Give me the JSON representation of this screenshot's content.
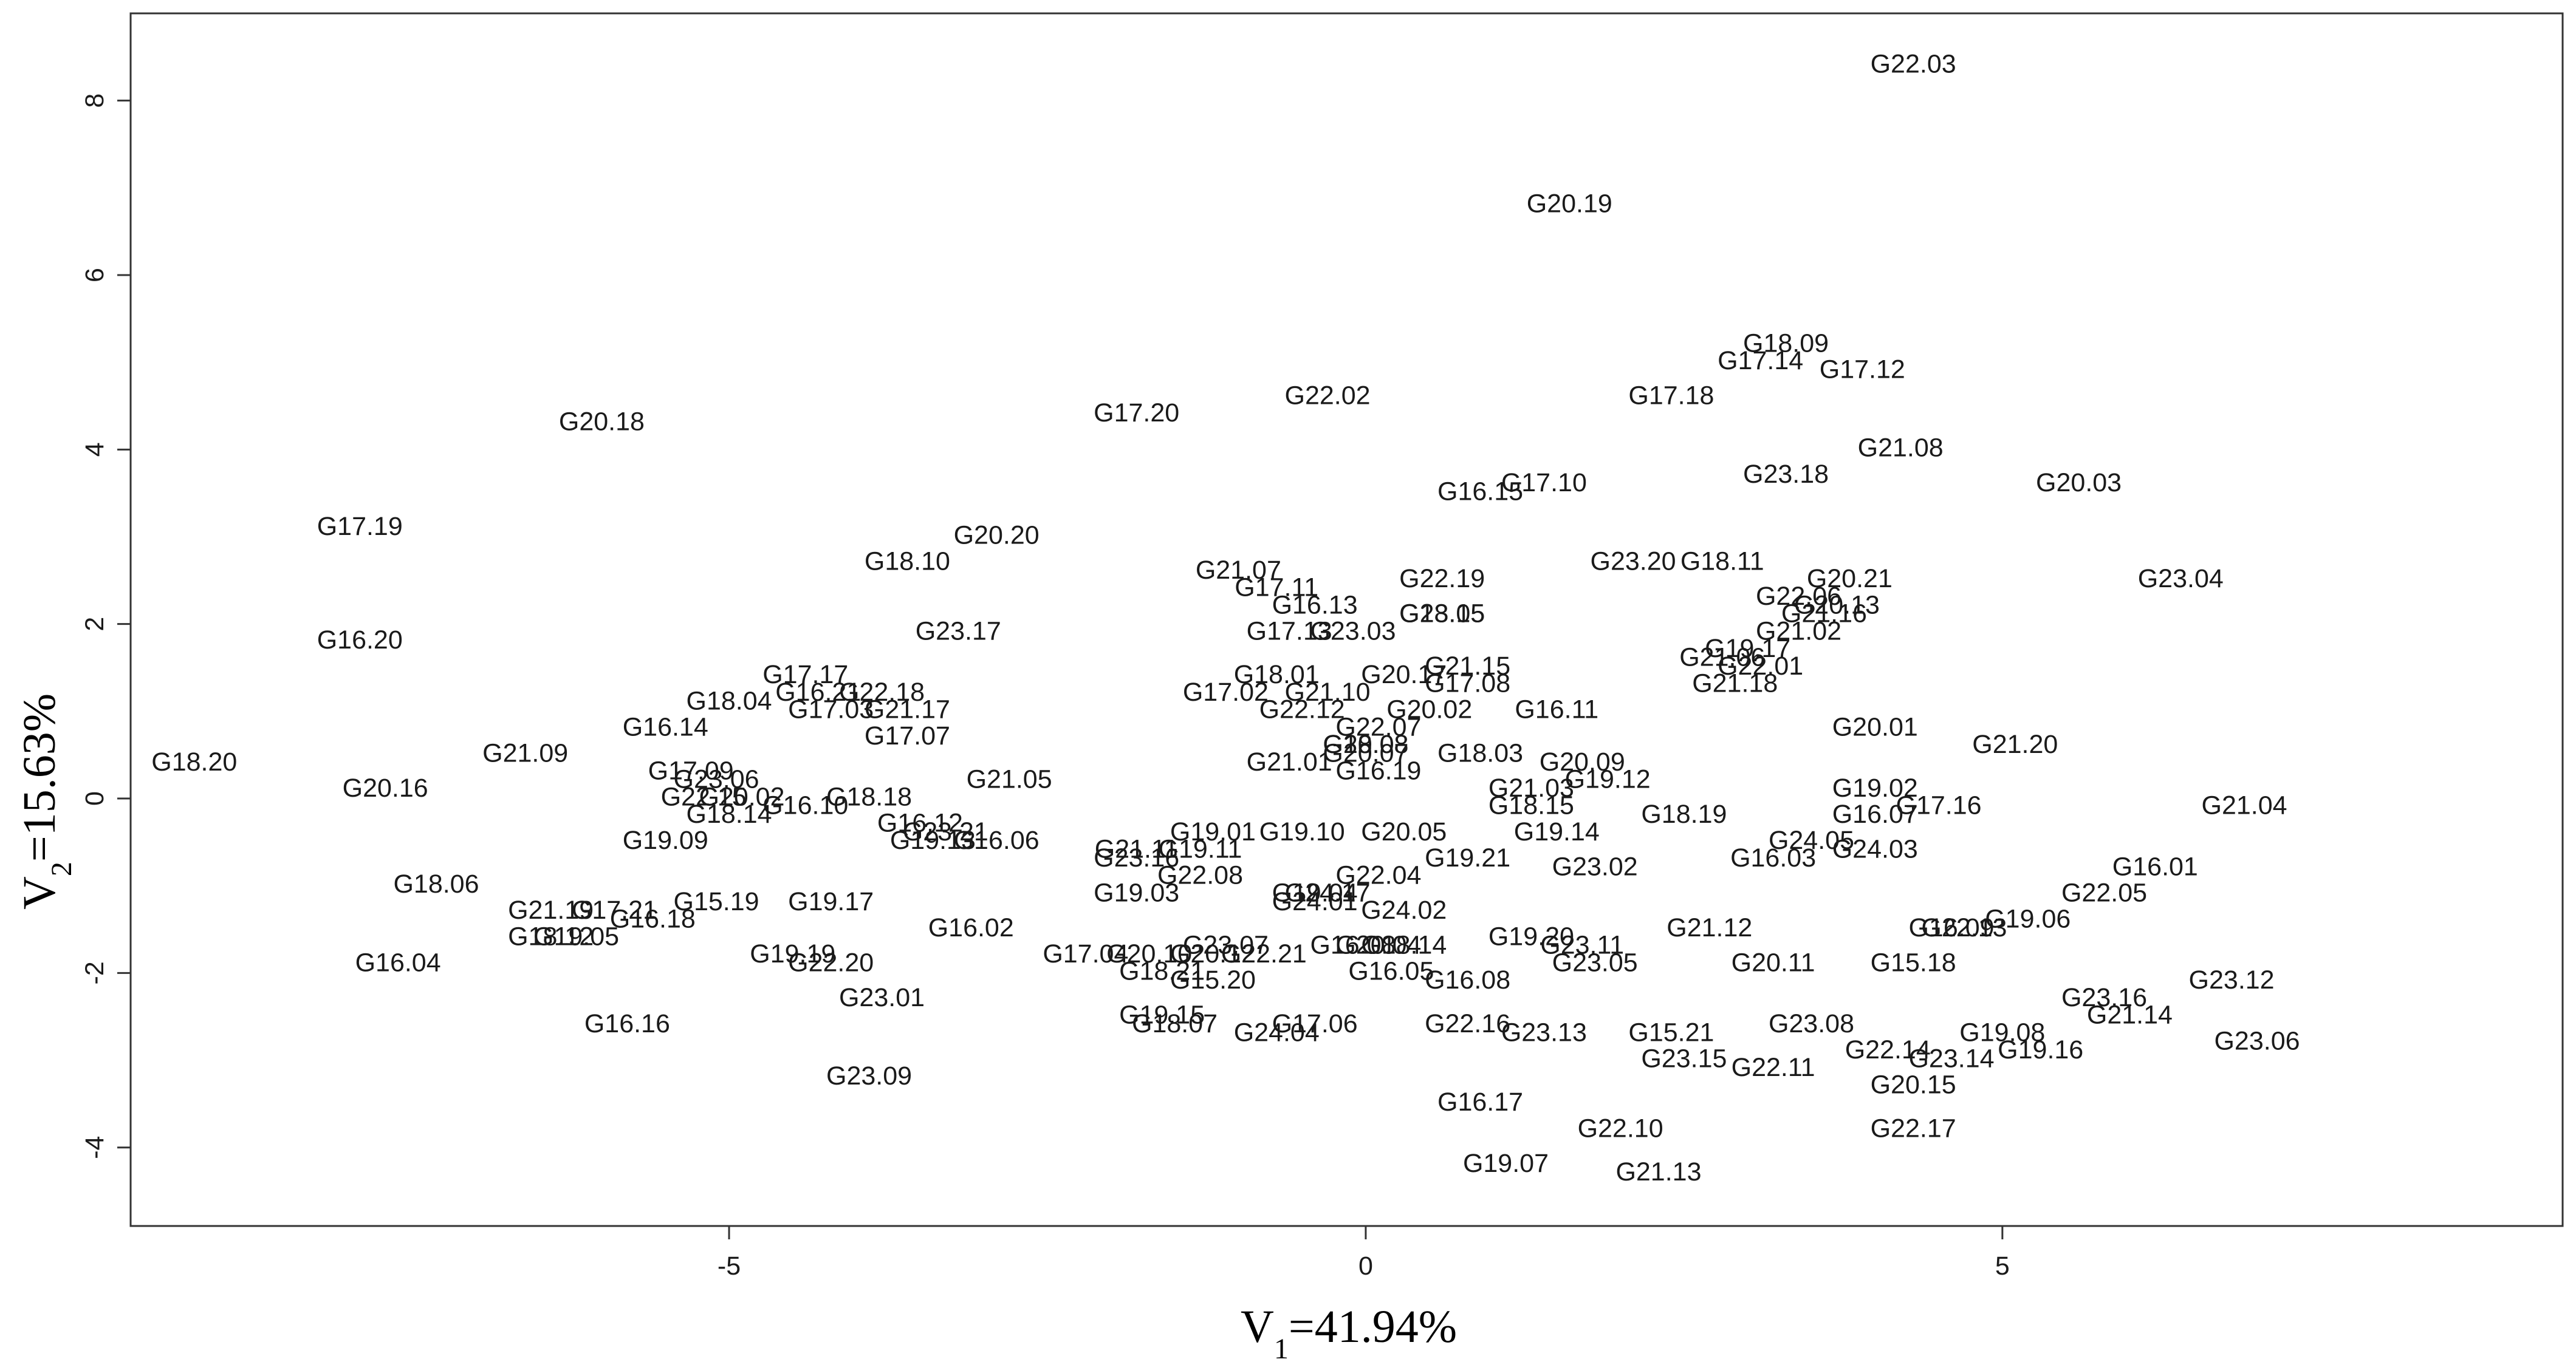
{
  "chart_data": {
    "type": "scatter",
    "xlabel": {
      "base": "V",
      "sub": "1",
      "rest": "=41.94%"
    },
    "ylabel": {
      "base": "V",
      "sub": "2",
      "rest": "=15.63%"
    },
    "xlim": [
      -9.7,
      9.4
    ],
    "ylim": [
      -4.9,
      9.0
    ],
    "xticks": [
      -5,
      0,
      5
    ],
    "yticks": [
      -4,
      -2,
      0,
      2,
      4,
      6,
      8
    ],
    "grid": false,
    "marker": "text-label",
    "points": [
      {
        "label": "G22.03",
        "x": 4.3,
        "y": 8.4
      },
      {
        "label": "G20.19",
        "x": 1.6,
        "y": 6.8
      },
      {
        "label": "G18.09",
        "x": 3.3,
        "y": 5.2
      },
      {
        "label": "G17.14",
        "x": 3.1,
        "y": 5.0
      },
      {
        "label": "G17.12",
        "x": 3.9,
        "y": 4.9
      },
      {
        "label": "G17.18",
        "x": 2.4,
        "y": 4.6
      },
      {
        "label": "G22.02",
        "x": -0.3,
        "y": 4.6
      },
      {
        "label": "G17.20",
        "x": -1.8,
        "y": 4.4
      },
      {
        "label": "G20.18",
        "x": -6.0,
        "y": 4.3
      },
      {
        "label": "G21.08",
        "x": 4.2,
        "y": 4.0
      },
      {
        "label": "G23.18",
        "x": 3.3,
        "y": 3.7
      },
      {
        "label": "G20.03",
        "x": 5.6,
        "y": 3.6
      },
      {
        "label": "G17.10",
        "x": 1.4,
        "y": 3.6
      },
      {
        "label": "G16.15",
        "x": 0.9,
        "y": 3.5
      },
      {
        "label": "G17.19",
        "x": -7.9,
        "y": 3.1
      },
      {
        "label": "G20.20",
        "x": -2.9,
        "y": 3.0
      },
      {
        "label": "G18.10",
        "x": -3.6,
        "y": 2.7
      },
      {
        "label": "G23.20",
        "x": 2.1,
        "y": 2.7
      },
      {
        "label": "G18.11",
        "x": 2.8,
        "y": 2.7
      },
      {
        "label": "G21.07",
        "x": -1.0,
        "y": 2.6
      },
      {
        "label": "G23.04",
        "x": 6.4,
        "y": 2.5
      },
      {
        "label": "G20.21",
        "x": 3.8,
        "y": 2.5
      },
      {
        "label": "G22.19",
        "x": 0.6,
        "y": 2.5
      },
      {
        "label": "G17.11",
        "x": -0.7,
        "y": 2.4
      },
      {
        "label": "G22.06",
        "x": 3.4,
        "y": 2.3
      },
      {
        "label": "G20.13",
        "x": 3.7,
        "y": 2.2
      },
      {
        "label": "G16.13",
        "x": -0.4,
        "y": 2.2
      },
      {
        "label": "G23.05",
        "x": 0.6,
        "y": 2.1
      },
      {
        "label": "G18.15",
        "x": 0.6,
        "y": 2.1
      },
      {
        "label": "G21.16",
        "x": 3.6,
        "y": 2.1
      },
      {
        "label": "G17.13",
        "x": -0.6,
        "y": 1.9
      },
      {
        "label": "G23.03",
        "x": -0.1,
        "y": 1.9
      },
      {
        "label": "G21.02",
        "x": 3.4,
        "y": 1.9
      },
      {
        "label": "G23.17",
        "x": -3.2,
        "y": 1.9
      },
      {
        "label": "G16.20",
        "x": -7.9,
        "y": 1.8
      },
      {
        "label": "G19.17",
        "x": 3.0,
        "y": 1.7
      },
      {
        "label": "G21.06",
        "x": 2.8,
        "y": 1.6
      },
      {
        "label": "G22.01",
        "x": 3.1,
        "y": 1.5
      },
      {
        "label": "G21.15",
        "x": 0.8,
        "y": 1.5
      },
      {
        "label": "G17.17",
        "x": -4.4,
        "y": 1.4
      },
      {
        "label": "G18.01",
        "x": -0.7,
        "y": 1.4
      },
      {
        "label": "G20.17",
        "x": 0.3,
        "y": 1.4
      },
      {
        "label": "G17.08",
        "x": 0.8,
        "y": 1.3
      },
      {
        "label": "G21.18",
        "x": 2.9,
        "y": 1.3
      },
      {
        "label": "G16.21",
        "x": -4.3,
        "y": 1.2
      },
      {
        "label": "G22.18",
        "x": -3.8,
        "y": 1.2
      },
      {
        "label": "G17.02",
        "x": -1.1,
        "y": 1.2
      },
      {
        "label": "G21.10",
        "x": -0.3,
        "y": 1.2
      },
      {
        "label": "G18.04",
        "x": -5.0,
        "y": 1.1
      },
      {
        "label": "G17.03",
        "x": -4.2,
        "y": 1.0
      },
      {
        "label": "G21.17",
        "x": -3.6,
        "y": 1.0
      },
      {
        "label": "G22.12",
        "x": -0.5,
        "y": 1.0
      },
      {
        "label": "G16.11",
        "x": 1.5,
        "y": 1.0
      },
      {
        "label": "G20.02",
        "x": 0.5,
        "y": 1.0
      },
      {
        "label": "G16.14",
        "x": -5.5,
        "y": 0.8
      },
      {
        "label": "G22.07",
        "x": 0.1,
        "y": 0.8
      },
      {
        "label": "G20.01",
        "x": 4.0,
        "y": 0.8
      },
      {
        "label": "G17.07",
        "x": -3.6,
        "y": 0.7
      },
      {
        "label": "G18.08",
        "x": 0.0,
        "y": 0.6
      },
      {
        "label": "G20.08",
        "x": 0.0,
        "y": 0.6
      },
      {
        "label": "G21.20",
        "x": 5.1,
        "y": 0.6
      },
      {
        "label": "G18.03",
        "x": 0.9,
        "y": 0.5
      },
      {
        "label": "G21.01",
        "x": -0.6,
        "y": 0.4
      },
      {
        "label": "G20.07",
        "x": 0.0,
        "y": 0.5
      },
      {
        "label": "G20.09",
        "x": 1.7,
        "y": 0.4
      },
      {
        "label": "G18.20",
        "x": -9.2,
        "y": 0.4
      },
      {
        "label": "G21.09",
        "x": -6.6,
        "y": 0.5
      },
      {
        "label": "G16.19",
        "x": 0.1,
        "y": 0.3
      },
      {
        "label": "G17.09",
        "x": -5.3,
        "y": 0.3
      },
      {
        "label": "G19.12",
        "x": 1.9,
        "y": 0.2
      },
      {
        "label": "G21.05",
        "x": -2.8,
        "y": 0.2
      },
      {
        "label": "G23.06",
        "x": -5.1,
        "y": 0.2
      },
      {
        "label": "G20.16",
        "x": -7.7,
        "y": 0.1
      },
      {
        "label": "G21.03",
        "x": 1.3,
        "y": 0.1
      },
      {
        "label": "G19.02",
        "x": 4.0,
        "y": 0.1
      },
      {
        "label": "G22.15",
        "x": -5.2,
        "y": 0.0
      },
      {
        "label": "G20.02",
        "x": -4.9,
        "y": 0.0
      },
      {
        "label": "G18.18",
        "x": -3.9,
        "y": 0.0
      },
      {
        "label": "G16.10",
        "x": -4.4,
        "y": -0.1
      },
      {
        "label": "G18.15",
        "x": 1.3,
        "y": -0.1
      },
      {
        "label": "G17.16",
        "x": 4.5,
        "y": -0.1
      },
      {
        "label": "G18.19",
        "x": 2.5,
        "y": -0.2
      },
      {
        "label": "G21.04",
        "x": 6.9,
        "y": -0.1
      },
      {
        "label": "G18.14",
        "x": -5.0,
        "y": -0.2
      },
      {
        "label": "G16.07",
        "x": 4.0,
        "y": -0.2
      },
      {
        "label": "G16.12",
        "x": -3.5,
        "y": -0.3
      },
      {
        "label": "G23.21",
        "x": -3.3,
        "y": -0.4
      },
      {
        "label": "G19.01",
        "x": -1.2,
        "y": -0.4
      },
      {
        "label": "G19.10",
        "x": -0.5,
        "y": -0.4
      },
      {
        "label": "G20.05",
        "x": 0.3,
        "y": -0.4
      },
      {
        "label": "G19.14",
        "x": 1.5,
        "y": -0.4
      },
      {
        "label": "G16.06",
        "x": -2.9,
        "y": -0.5
      },
      {
        "label": "G19.13",
        "x": -3.4,
        "y": -0.5
      },
      {
        "label": "G19.09",
        "x": -5.5,
        "y": -0.5
      },
      {
        "label": "G24.05",
        "x": 3.5,
        "y": -0.5
      },
      {
        "label": "G24.03",
        "x": 4.0,
        "y": -0.6
      },
      {
        "label": "G21.11",
        "x": -1.8,
        "y": -0.6
      },
      {
        "label": "G19.11",
        "x": -1.3,
        "y": -0.6
      },
      {
        "label": "G23.16",
        "x": -1.8,
        "y": -0.7
      },
      {
        "label": "G19.21",
        "x": 0.8,
        "y": -0.7
      },
      {
        "label": "G16.03",
        "x": 3.2,
        "y": -0.7
      },
      {
        "label": "G23.02",
        "x": 1.8,
        "y": -0.8
      },
      {
        "label": "G16.01",
        "x": 6.2,
        "y": -0.8
      },
      {
        "label": "G22.08",
        "x": -1.3,
        "y": -0.9
      },
      {
        "label": "G22.04",
        "x": 0.1,
        "y": -0.9
      },
      {
        "label": "G18.06",
        "x": -7.3,
        "y": -1.0
      },
      {
        "label": "G19.04",
        "x": -0.4,
        "y": -1.1
      },
      {
        "label": "G24.17",
        "x": -0.3,
        "y": -1.1
      },
      {
        "label": "G19.03",
        "x": -1.8,
        "y": -1.1
      },
      {
        "label": "G22.05",
        "x": 5.8,
        "y": -1.1
      },
      {
        "label": "G15.19",
        "x": -5.1,
        "y": -1.2
      },
      {
        "label": "G19.17",
        "x": -4.2,
        "y": -1.2
      },
      {
        "label": "G24.01",
        "x": -0.4,
        "y": -1.2
      },
      {
        "label": "G24.02",
        "x": 0.3,
        "y": -1.3
      },
      {
        "label": "G17.21",
        "x": -5.9,
        "y": -1.3
      },
      {
        "label": "G21.19",
        "x": -6.4,
        "y": -1.3
      },
      {
        "label": "G16.18",
        "x": -5.6,
        "y": -1.4
      },
      {
        "label": "G16.02",
        "x": -3.1,
        "y": -1.5
      },
      {
        "label": "G21.12",
        "x": 2.7,
        "y": -1.5
      },
      {
        "label": "G22.13",
        "x": 4.7,
        "y": -1.5
      },
      {
        "label": "G19.06",
        "x": 5.2,
        "y": -1.4
      },
      {
        "label": "G16.09",
        "x": 4.6,
        "y": -1.5
      },
      {
        "label": "G19.05",
        "x": -6.2,
        "y": -1.6
      },
      {
        "label": "G18.12",
        "x": -6.4,
        "y": -1.6
      },
      {
        "label": "G19.20",
        "x": 1.3,
        "y": -1.6
      },
      {
        "label": "G23.11",
        "x": 1.7,
        "y": -1.7
      },
      {
        "label": "G23.07",
        "x": -1.1,
        "y": -1.7
      },
      {
        "label": "G16.08",
        "x": -0.1,
        "y": -1.7
      },
      {
        "label": "G20.04",
        "x": 0.1,
        "y": -1.7
      },
      {
        "label": "G18.14",
        "x": 0.3,
        "y": -1.7
      },
      {
        "label": "G17.04",
        "x": -2.2,
        "y": -1.8
      },
      {
        "label": "G20.10",
        "x": -1.7,
        "y": -1.8
      },
      {
        "label": "G20.12",
        "x": -1.2,
        "y": -1.8
      },
      {
        "label": "G22.21",
        "x": -0.8,
        "y": -1.8
      },
      {
        "label": "G19.19",
        "x": -4.5,
        "y": -1.8
      },
      {
        "label": "G20.11",
        "x": 3.2,
        "y": -1.9
      },
      {
        "label": "G15.18",
        "x": 4.3,
        "y": -1.9
      },
      {
        "label": "G22.20",
        "x": -4.2,
        "y": -1.9
      },
      {
        "label": "G16.04",
        "x": -7.6,
        "y": -1.9
      },
      {
        "label": "G23.05",
        "x": 1.8,
        "y": -1.9
      },
      {
        "label": "G18.21",
        "x": -1.6,
        "y": -2.0
      },
      {
        "label": "G16.05",
        "x": 0.2,
        "y": -2.0
      },
      {
        "label": "G15.20",
        "x": -1.2,
        "y": -2.1
      },
      {
        "label": "G16.08",
        "x": 0.8,
        "y": -2.1
      },
      {
        "label": "G23.12",
        "x": 6.8,
        "y": -2.1
      },
      {
        "label": "G23.01",
        "x": -3.8,
        "y": -2.3
      },
      {
        "label": "G23.16",
        "x": 5.8,
        "y": -2.3
      },
      {
        "label": "G21.14",
        "x": 6.0,
        "y": -2.5
      },
      {
        "label": "G19.15",
        "x": -1.6,
        "y": -2.5
      },
      {
        "label": "G16.16",
        "x": -5.8,
        "y": -2.6
      },
      {
        "label": "G22.16",
        "x": 0.8,
        "y": -2.6
      },
      {
        "label": "G18.07",
        "x": -1.5,
        "y": -2.6
      },
      {
        "label": "G17.06",
        "x": -0.4,
        "y": -2.6
      },
      {
        "label": "G24.04",
        "x": -0.7,
        "y": -2.7
      },
      {
        "label": "G23.13",
        "x": 1.4,
        "y": -2.7
      },
      {
        "label": "G23.08",
        "x": 3.5,
        "y": -2.6
      },
      {
        "label": "G15.21",
        "x": 2.4,
        "y": -2.7
      },
      {
        "label": "G19.08",
        "x": 5.0,
        "y": -2.7
      },
      {
        "label": "G23.06",
        "x": 7.0,
        "y": -2.8
      },
      {
        "label": "G19.16",
        "x": 5.3,
        "y": -2.9
      },
      {
        "label": "G22.14",
        "x": 4.1,
        "y": -2.9
      },
      {
        "label": "G23.14",
        "x": 4.6,
        "y": -3.0
      },
      {
        "label": "G23.15",
        "x": 2.5,
        "y": -3.0
      },
      {
        "label": "G22.11",
        "x": 3.2,
        "y": -3.1
      },
      {
        "label": "G23.09",
        "x": -3.9,
        "y": -3.2
      },
      {
        "label": "G20.15",
        "x": 4.3,
        "y": -3.3
      },
      {
        "label": "G16.17",
        "x": 0.9,
        "y": -3.5
      },
      {
        "label": "G22.10",
        "x": 2.0,
        "y": -3.8
      },
      {
        "label": "G22.17",
        "x": 4.3,
        "y": -3.8
      },
      {
        "label": "G19.07",
        "x": 1.1,
        "y": -4.2
      },
      {
        "label": "G21.13",
        "x": 2.3,
        "y": -4.3
      }
    ]
  }
}
